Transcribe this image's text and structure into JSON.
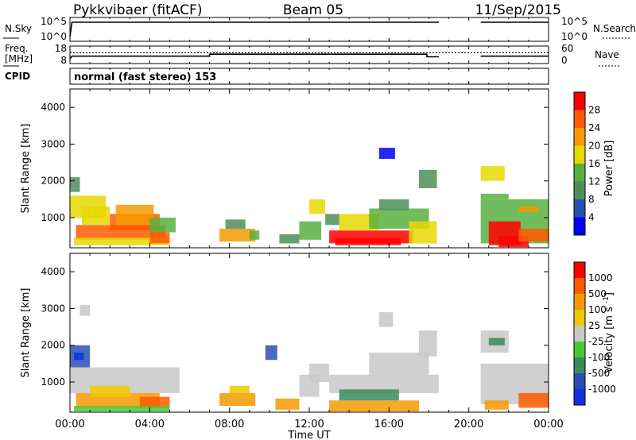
{
  "header": {
    "radar": "Pykkvibaer (fitACF)",
    "beam": "Beam 05",
    "date": "11/Sep/2015"
  },
  "nsky_panel": {
    "left_label": "N.Sky",
    "left_ticks": [
      "10^5",
      "10^0"
    ],
    "right_label": "N.Search",
    "right_ticks": [
      "10^5",
      "10^0"
    ]
  },
  "freq_panel": {
    "left_label_1": "Freq.",
    "left_label_2": "[MHz]",
    "left_ticks": [
      "18",
      "8"
    ],
    "right_label": "Nave",
    "right_ticks": [
      "60",
      "0"
    ]
  },
  "cpid": {
    "label": "CPID",
    "value": "normal (fast stereo) 153"
  },
  "time_axis": {
    "title": "Time UT",
    "ticks": [
      "00:00",
      "04:00",
      "08:00",
      "12:00",
      "16:00",
      "20:00",
      "00:00"
    ]
  },
  "colors": {
    "power": [
      "#0000ff",
      "#2850b4",
      "#4d8f5a",
      "#58b040",
      "#e8d800",
      "#f59a00",
      "#ff5a00",
      "#ff0000"
    ],
    "velocity": [
      "#ff0000",
      "#ff5a00",
      "#f59a00",
      "#f0c800",
      "#c8c8c8",
      "#4cc53a",
      "#3a8a5a",
      "#2850b4",
      "#1030e0"
    ]
  },
  "chart_data": [
    {
      "type": "line",
      "title": "",
      "ylabel": "N.Sky",
      "x_unit": "hours UT",
      "xlim": [
        0,
        24
      ],
      "series": [
        {
          "name": "N.Sky",
          "x": [
            0,
            0.1,
            18.5,
            18.5,
            20.6,
            20.6,
            24
          ],
          "y": [
            0.2,
            0.8,
            0.8,
            null,
            null,
            0.8,
            0.8
          ]
        }
      ]
    },
    {
      "type": "line",
      "title": "",
      "ylabel": "Freq. [MHz]",
      "ylim": [
        8,
        18
      ],
      "series": [
        {
          "name": "Freq.",
          "x": [
            0,
            0.1,
            7.0,
            7.0,
            17.9,
            17.9,
            18.5,
            20.6,
            20.6,
            24
          ],
          "y": [
            8.5,
            10.5,
            10.5,
            12,
            12,
            10,
            10,
            null,
            10.5,
            10.5
          ]
        },
        {
          "name": "Nave",
          "x": [
            0,
            18.5,
            20.6,
            24
          ],
          "y": [
            13,
            13,
            13,
            13
          ]
        }
      ]
    },
    {
      "type": "heatmap",
      "title": "",
      "xlabel": "Time UT",
      "ylabel": "Slant Range [km]",
      "y_ticks": [
        1000,
        2000,
        3000,
        4000
      ],
      "ylim": [
        180,
        4500
      ],
      "colorbar_label": "Power [dB]",
      "colorbar_ticks": [
        "4",
        "8",
        "12",
        "16",
        "20",
        "24",
        "28"
      ],
      "cells": [
        [
          0.0,
          1.8,
          1000,
          1600,
          4
        ],
        [
          0.0,
          0.5,
          1700,
          2100,
          2
        ],
        [
          0.3,
          4.8,
          400,
          800,
          6
        ],
        [
          0.6,
          2.0,
          800,
          1300,
          4
        ],
        [
          2.0,
          4.5,
          650,
          1100,
          6
        ],
        [
          2.3,
          4.2,
          800,
          1350,
          5
        ],
        [
          0.2,
          5.0,
          250,
          450,
          4
        ],
        [
          4.0,
          5.0,
          300,
          600,
          6
        ],
        [
          4.0,
          5.3,
          600,
          1000,
          3
        ],
        [
          7.5,
          9.3,
          350,
          700,
          5
        ],
        [
          7.8,
          8.8,
          700,
          950,
          2
        ],
        [
          9.0,
          9.5,
          400,
          650,
          3
        ],
        [
          10.5,
          11.5,
          300,
          550,
          2
        ],
        [
          11.5,
          12.6,
          400,
          900,
          3
        ],
        [
          12.0,
          12.8,
          1100,
          1500,
          4
        ],
        [
          12.8,
          13.5,
          800,
          1100,
          2
        ],
        [
          13.0,
          17.2,
          300,
          650,
          7
        ],
        [
          13.3,
          16.6,
          250,
          450,
          7
        ],
        [
          13.5,
          15.5,
          650,
          1100,
          4
        ],
        [
          15.0,
          18.0,
          700,
          1250,
          3
        ],
        [
          15.5,
          17.0,
          1200,
          1500,
          2
        ],
        [
          17.0,
          18.4,
          300,
          900,
          4
        ],
        [
          17.5,
          18.4,
          1800,
          2300,
          2
        ],
        [
          15.5,
          16.3,
          2600,
          2900,
          0
        ],
        [
          20.6,
          24.0,
          300,
          1500,
          3
        ],
        [
          21.0,
          22.6,
          250,
          900,
          7
        ],
        [
          21.5,
          23.0,
          200,
          500,
          7
        ],
        [
          22.5,
          24.0,
          350,
          700,
          6
        ],
        [
          20.6,
          21.8,
          2000,
          2400,
          4
        ],
        [
          20.6,
          22.0,
          1500,
          1650,
          3
        ],
        [
          22.5,
          23.5,
          1150,
          1300,
          5
        ]
      ]
    },
    {
      "type": "heatmap",
      "title": "",
      "xlabel": "Time UT",
      "ylabel": "Slant Range [km]",
      "y_ticks": [
        1000,
        2000,
        3000,
        4000
      ],
      "ylim": [
        180,
        4500
      ],
      "colorbar_label": "Velocity [m s^-1]",
      "colorbar_ticks": [
        "1000",
        "500",
        "100",
        "25",
        "-25",
        "-100",
        "-500",
        "-1000"
      ],
      "cells": [
        [
          0.0,
          1.0,
          1400,
          2000,
          7
        ],
        [
          0.2,
          0.7,
          1600,
          1800,
          8
        ],
        [
          0.0,
          5.5,
          700,
          1400,
          4
        ],
        [
          0.3,
          4.5,
          300,
          700,
          2
        ],
        [
          1.0,
          3.0,
          600,
          900,
          3
        ],
        [
          3.5,
          5.0,
          300,
          600,
          1
        ],
        [
          0.2,
          5.0,
          200,
          350,
          5
        ],
        [
          0.5,
          1.0,
          2800,
          3100,
          4
        ],
        [
          7.5,
          9.3,
          350,
          700,
          2
        ],
        [
          8.0,
          9.0,
          700,
          900,
          3
        ],
        [
          10.3,
          11.5,
          250,
          550,
          2
        ],
        [
          11.5,
          12.5,
          600,
          1200,
          4
        ],
        [
          12.0,
          13.0,
          1000,
          1500,
          4
        ],
        [
          9.8,
          10.4,
          1600,
          2000,
          7
        ],
        [
          13.0,
          18.5,
          700,
          1200,
          4
        ],
        [
          13.0,
          17.5,
          200,
          500,
          2
        ],
        [
          13.5,
          16.5,
          500,
          800,
          6
        ],
        [
          15.0,
          18.0,
          1200,
          1800,
          4
        ],
        [
          17.5,
          18.4,
          1700,
          2400,
          4
        ],
        [
          15.5,
          16.2,
          2500,
          2900,
          4
        ],
        [
          20.6,
          24.0,
          400,
          1500,
          4
        ],
        [
          20.8,
          22.0,
          250,
          500,
          2
        ],
        [
          22.5,
          24.0,
          300,
          700,
          1
        ],
        [
          20.6,
          22.0,
          1800,
          2400,
          4
        ],
        [
          21.0,
          21.8,
          2000,
          2200,
          6
        ]
      ]
    }
  ]
}
